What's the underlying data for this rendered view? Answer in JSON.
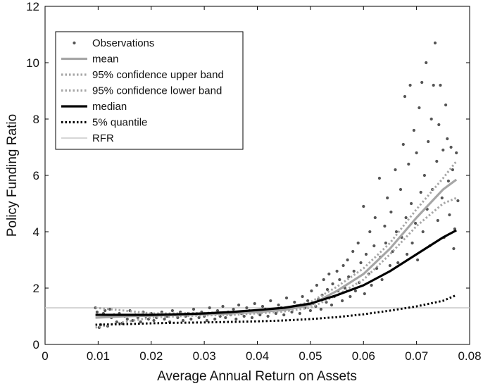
{
  "chart_data": {
    "type": "scatter",
    "xlabel": "Average Annual Return on Assets",
    "ylabel": "Policy Funding Ratio",
    "xlim": [
      0,
      0.08
    ],
    "ylim": [
      0,
      12
    ],
    "x_ticks": [
      0,
      0.01,
      0.02,
      0.03,
      0.04,
      0.05,
      0.06,
      0.07,
      0.08
    ],
    "y_ticks": [
      0,
      2,
      4,
      6,
      8,
      10,
      12
    ],
    "x_tick_labels": [
      "0",
      "0.01",
      "0.02",
      "0.03",
      "0.04",
      "0.05",
      "0.06",
      "0.07",
      "0.08"
    ],
    "y_tick_labels": [
      "0",
      "2",
      "4",
      "6",
      "8",
      "10",
      "12"
    ],
    "grid": false,
    "legend_position": "top-left",
    "legend": [
      {
        "label": "Observations",
        "style": "dots",
        "color": "#555555"
      },
      {
        "label": "mean",
        "style": "solid-thick",
        "color": "#a6a6a6"
      },
      {
        "label": "95% confidence upper band",
        "style": "dotted",
        "color": "#a6a6a6"
      },
      {
        "label": "95% confidence lower band",
        "style": "dotted",
        "color": "#a6a6a6"
      },
      {
        "label": "median",
        "style": "solid-thick",
        "color": "#000000"
      },
      {
        "label": "5% quantile",
        "style": "dotted",
        "color": "#000000"
      },
      {
        "label": "RFR",
        "style": "solid-thin",
        "color": "#c8c8c8"
      }
    ],
    "series": [
      {
        "name": "mean",
        "x": [
          0.0095,
          0.015,
          0.02,
          0.025,
          0.03,
          0.035,
          0.04,
          0.045,
          0.05,
          0.055,
          0.06,
          0.065,
          0.07,
          0.075,
          0.0775
        ],
        "y": [
          0.95,
          1.0,
          1.02,
          1.05,
          1.07,
          1.1,
          1.15,
          1.22,
          1.4,
          1.9,
          2.5,
          3.4,
          4.5,
          5.5,
          5.85
        ]
      },
      {
        "name": "95% confidence upper band",
        "x": [
          0.0095,
          0.015,
          0.02,
          0.025,
          0.03,
          0.035,
          0.04,
          0.045,
          0.05,
          0.055,
          0.06,
          0.065,
          0.07,
          0.075,
          0.0775
        ],
        "y": [
          1.3,
          1.2,
          1.1,
          1.1,
          1.12,
          1.15,
          1.2,
          1.28,
          1.5,
          2.05,
          2.7,
          3.6,
          4.8,
          5.9,
          6.5
        ]
      },
      {
        "name": "95% confidence lower band",
        "x": [
          0.0095,
          0.015,
          0.02,
          0.025,
          0.03,
          0.035,
          0.04,
          0.045,
          0.05,
          0.055,
          0.06,
          0.065,
          0.07,
          0.075,
          0.0775
        ],
        "y": [
          0.6,
          0.8,
          0.95,
          1.0,
          1.03,
          1.05,
          1.1,
          1.17,
          1.3,
          1.75,
          2.3,
          3.2,
          4.2,
          5.0,
          5.2
        ]
      },
      {
        "name": "median",
        "x": [
          0.0095,
          0.015,
          0.02,
          0.025,
          0.03,
          0.035,
          0.04,
          0.045,
          0.05,
          0.055,
          0.06,
          0.065,
          0.07,
          0.075,
          0.0775
        ],
        "y": [
          1.05,
          1.05,
          1.05,
          1.07,
          1.1,
          1.15,
          1.22,
          1.3,
          1.45,
          1.75,
          2.1,
          2.6,
          3.2,
          3.8,
          4.05
        ]
      },
      {
        "name": "5% quantile",
        "x": [
          0.0095,
          0.015,
          0.02,
          0.025,
          0.03,
          0.035,
          0.04,
          0.045,
          0.05,
          0.055,
          0.06,
          0.065,
          0.07,
          0.075,
          0.0775
        ],
        "y": [
          0.7,
          0.72,
          0.75,
          0.77,
          0.78,
          0.8,
          0.82,
          0.85,
          0.9,
          0.97,
          1.07,
          1.2,
          1.35,
          1.55,
          1.75
        ]
      },
      {
        "name": "RFR",
        "x": [
          0,
          0.08
        ],
        "y": [
          1.3,
          1.3
        ]
      }
    ],
    "observations": [
      [
        0.0095,
        1.3
      ],
      [
        0.0098,
        1.15
      ],
      [
        0.0102,
        0.6
      ],
      [
        0.0105,
        0.7
      ],
      [
        0.011,
        1.1
      ],
      [
        0.0113,
        1.2
      ],
      [
        0.0118,
        0.65
      ],
      [
        0.0122,
        1.25
      ],
      [
        0.0125,
        0.95
      ],
      [
        0.013,
        1.05
      ],
      [
        0.0135,
        0.8
      ],
      [
        0.014,
        1.1
      ],
      [
        0.0145,
        0.75
      ],
      [
        0.015,
        1.0
      ],
      [
        0.0155,
        0.9
      ],
      [
        0.016,
        1.2
      ],
      [
        0.0165,
        0.85
      ],
      [
        0.017,
        1.05
      ],
      [
        0.0175,
        0.95
      ],
      [
        0.018,
        0.8
      ],
      [
        0.0185,
        1.15
      ],
      [
        0.019,
        1.0
      ],
      [
        0.0195,
        0.9
      ],
      [
        0.02,
        1.1
      ],
      [
        0.0205,
        0.85
      ],
      [
        0.021,
        0.95
      ],
      [
        0.0215,
        1.05
      ],
      [
        0.022,
        1.15
      ],
      [
        0.0225,
        0.9
      ],
      [
        0.023,
        1.0
      ],
      [
        0.0235,
        0.8
      ],
      [
        0.024,
        1.2
      ],
      [
        0.0245,
        1.05
      ],
      [
        0.025,
        0.95
      ],
      [
        0.0255,
        1.15
      ],
      [
        0.026,
        0.85
      ],
      [
        0.0265,
        1.0
      ],
      [
        0.027,
        1.1
      ],
      [
        0.0275,
        0.9
      ],
      [
        0.028,
        1.25
      ],
      [
        0.0285,
        1.05
      ],
      [
        0.029,
        0.95
      ],
      [
        0.0295,
        1.15
      ],
      [
        0.03,
        1.0
      ],
      [
        0.0305,
        0.85
      ],
      [
        0.031,
        1.3
      ],
      [
        0.0315,
        1.1
      ],
      [
        0.032,
        0.9
      ],
      [
        0.0325,
        1.2
      ],
      [
        0.033,
        1.0
      ],
      [
        0.0335,
        1.35
      ],
      [
        0.034,
        0.95
      ],
      [
        0.0345,
        1.15
      ],
      [
        0.035,
        1.05
      ],
      [
        0.0355,
        1.25
      ],
      [
        0.036,
        0.9
      ],
      [
        0.0365,
        1.4
      ],
      [
        0.037,
        1.1
      ],
      [
        0.0375,
        1.0
      ],
      [
        0.038,
        1.3
      ],
      [
        0.0385,
        1.2
      ],
      [
        0.039,
        0.95
      ],
      [
        0.0395,
        1.45
      ],
      [
        0.04,
        1.15
      ],
      [
        0.0405,
        1.05
      ],
      [
        0.041,
        1.35
      ],
      [
        0.0415,
        1.25
      ],
      [
        0.042,
        1.0
      ],
      [
        0.0425,
        1.55
      ],
      [
        0.043,
        1.2
      ],
      [
        0.0435,
        1.1
      ],
      [
        0.044,
        1.4
      ],
      [
        0.0445,
        1.3
      ],
      [
        0.045,
        1.05
      ],
      [
        0.0455,
        1.65
      ],
      [
        0.046,
        1.25
      ],
      [
        0.0465,
        1.15
      ],
      [
        0.047,
        1.5
      ],
      [
        0.0475,
        1.35
      ],
      [
        0.048,
        1.1
      ],
      [
        0.0485,
        1.7
      ],
      [
        0.049,
        1.3
      ],
      [
        0.0495,
        1.55
      ],
      [
        0.05,
        1.2
      ],
      [
        0.0502,
        1.9
      ],
      [
        0.0505,
        1.45
      ],
      [
        0.051,
        1.35
      ],
      [
        0.0512,
        2.1
      ],
      [
        0.0515,
        1.6
      ],
      [
        0.052,
        1.25
      ],
      [
        0.0522,
        1.75
      ],
      [
        0.0525,
        2.3
      ],
      [
        0.053,
        1.5
      ],
      [
        0.0532,
        1.95
      ],
      [
        0.0535,
        2.5
      ],
      [
        0.054,
        1.4
      ],
      [
        0.0542,
        2.15
      ],
      [
        0.0545,
        1.7
      ],
      [
        0.055,
        2.6
      ],
      [
        0.0552,
        1.9
      ],
      [
        0.0555,
        2.3
      ],
      [
        0.056,
        1.55
      ],
      [
        0.0562,
        2.8
      ],
      [
        0.0565,
        2.0
      ],
      [
        0.057,
        3.0
      ],
      [
        0.0572,
        2.4
      ],
      [
        0.0575,
        1.7
      ],
      [
        0.058,
        3.3
      ],
      [
        0.0582,
        2.6
      ],
      [
        0.0585,
        1.9
      ],
      [
        0.059,
        3.6
      ],
      [
        0.0592,
        2.2
      ],
      [
        0.0595,
        2.9
      ],
      [
        0.06,
        4.9
      ],
      [
        0.0602,
        1.8
      ],
      [
        0.0605,
        3.2
      ],
      [
        0.061,
        2.5
      ],
      [
        0.0612,
        4.0
      ],
      [
        0.0615,
        2.1
      ],
      [
        0.062,
        3.5
      ],
      [
        0.0622,
        4.5
      ],
      [
        0.0625,
        2.7
      ],
      [
        0.063,
        5.9
      ],
      [
        0.0632,
        3.1
      ],
      [
        0.0635,
        2.3
      ],
      [
        0.064,
        4.2
      ],
      [
        0.0642,
        3.6
      ],
      [
        0.0645,
        5.2
      ],
      [
        0.065,
        2.8
      ],
      [
        0.0652,
        4.7
      ],
      [
        0.0655,
        3.3
      ],
      [
        0.066,
        6.2
      ],
      [
        0.0662,
        4.0
      ],
      [
        0.0665,
        2.9
      ],
      [
        0.067,
        5.5
      ],
      [
        0.0672,
        3.8
      ],
      [
        0.0675,
        7.1
      ],
      [
        0.0678,
        8.8
      ],
      [
        0.068,
        4.5
      ],
      [
        0.0682,
        3.2
      ],
      [
        0.0685,
        6.4
      ],
      [
        0.0688,
        9.2
      ],
      [
        0.069,
        5.0
      ],
      [
        0.0692,
        3.6
      ],
      [
        0.0695,
        7.6
      ],
      [
        0.0698,
        4.3
      ],
      [
        0.07,
        6.8
      ],
      [
        0.0702,
        3.0
      ],
      [
        0.0705,
        8.4
      ],
      [
        0.0708,
        5.4
      ],
      [
        0.071,
        9.3
      ],
      [
        0.0712,
        4.0
      ],
      [
        0.0715,
        6.0
      ],
      [
        0.0718,
        10.0
      ],
      [
        0.072,
        4.8
      ],
      [
        0.0722,
        7.2
      ],
      [
        0.0725,
        3.5
      ],
      [
        0.0728,
        8.0
      ],
      [
        0.073,
        5.5
      ],
      [
        0.0732,
        9.2
      ],
      [
        0.0735,
        10.7
      ],
      [
        0.0738,
        6.5
      ],
      [
        0.074,
        4.4
      ],
      [
        0.0742,
        7.8
      ],
      [
        0.0745,
        9.2
      ],
      [
        0.0748,
        5.2
      ],
      [
        0.075,
        6.9
      ],
      [
        0.0752,
        3.8
      ],
      [
        0.0755,
        8.5
      ],
      [
        0.0758,
        7.3
      ],
      [
        0.076,
        5.8
      ],
      [
        0.0762,
        4.6
      ],
      [
        0.0765,
        7.0
      ],
      [
        0.0768,
        6.2
      ],
      [
        0.077,
        3.4
      ],
      [
        0.0772,
        4.1
      ],
      [
        0.0775,
        6.8
      ],
      [
        0.0778,
        5.1
      ]
    ]
  }
}
